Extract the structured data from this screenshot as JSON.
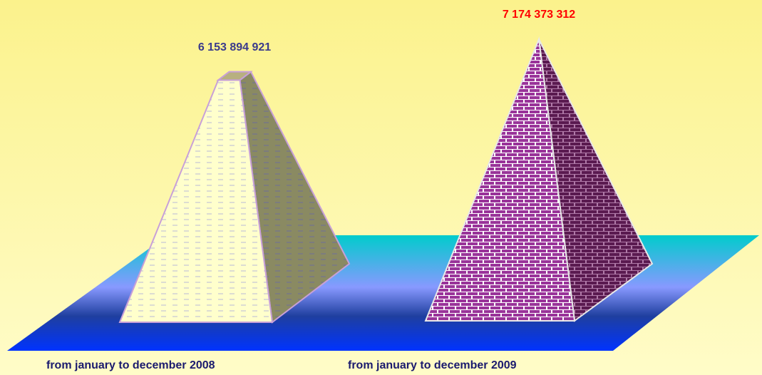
{
  "chart_data": {
    "type": "pyramid",
    "categories": [
      "from january to december 2008",
      "from january to december 2009"
    ],
    "values": [
      6153894921,
      7174373312
    ],
    "value_labels": [
      "6 153 894 921",
      "7 174 373 312"
    ],
    "colors": [
      "#ffffcc",
      "#993399"
    ],
    "label_colors": [
      "#3a3a8c",
      "#ff0000"
    ]
  }
}
